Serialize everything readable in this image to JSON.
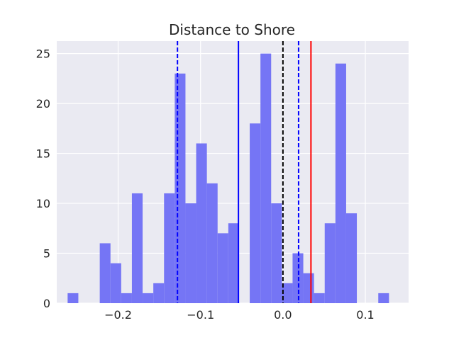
{
  "chart_data": {
    "type": "bar",
    "title": "Distance to Shore",
    "xlabel": "",
    "ylabel": "",
    "xlim": [
      -0.2745,
      0.1525
    ],
    "ylim": [
      0,
      26.25
    ],
    "grid": true,
    "legend": "none",
    "bar_color": "#7575f5",
    "plot_background": "#eaeaf2",
    "x_ticks": [
      {
        "value": -0.2,
        "label": "−0.2"
      },
      {
        "value": -0.1,
        "label": "−0.1"
      },
      {
        "value": 0.0,
        "label": "0.0"
      },
      {
        "value": 0.1,
        "label": "0.1"
      }
    ],
    "y_ticks": [
      {
        "value": 0,
        "label": "0"
      },
      {
        "value": 5,
        "label": "5"
      },
      {
        "value": 10,
        "label": "10"
      },
      {
        "value": 15,
        "label": "15"
      },
      {
        "value": 20,
        "label": "20"
      },
      {
        "value": 25,
        "label": "25"
      }
    ],
    "bin_edges": [
      -0.2613,
      -0.2483,
      -0.2353,
      -0.2223,
      -0.2093,
      -0.1963,
      -0.1833,
      -0.1703,
      -0.1573,
      -0.1443,
      -0.1313,
      -0.1183,
      -0.1053,
      -0.0923,
      -0.0793,
      -0.0663,
      -0.0533,
      -0.0403,
      -0.0273,
      -0.0143,
      -0.0013,
      0.0117,
      0.0247,
      0.0377,
      0.0507,
      0.0637,
      0.0767,
      0.0897,
      0.1027,
      0.1157,
      0.1287
    ],
    "counts": [
      1,
      0,
      0,
      6,
      4,
      1,
      11,
      1,
      2,
      11,
      23,
      10,
      16,
      12,
      7,
      8,
      0,
      18,
      25,
      10,
      2,
      5,
      3,
      1,
      8,
      24,
      9,
      0,
      0,
      1
    ],
    "vlines": [
      {
        "x": -0.128,
        "color": "#0000ff",
        "style": "dashed"
      },
      {
        "x": -0.054,
        "color": "#0000ff",
        "style": "solid"
      },
      {
        "x": 0.0,
        "color": "#000000",
        "style": "dashed"
      },
      {
        "x": 0.019,
        "color": "#0000ff",
        "style": "dashed"
      },
      {
        "x": 0.034,
        "color": "#ff0000",
        "style": "solid"
      }
    ]
  }
}
